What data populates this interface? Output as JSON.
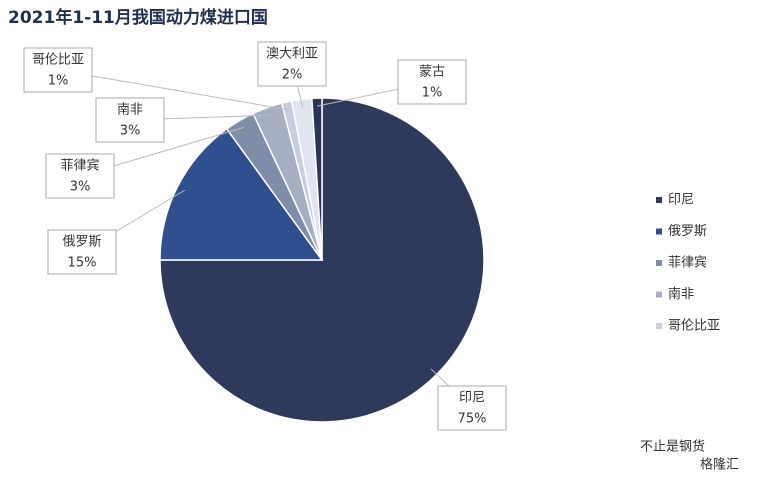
{
  "chart_data": {
    "type": "pie",
    "title": "2021年1-11月我国动力煤进口国",
    "categories": [
      "印尼",
      "俄罗斯",
      "菲律宾",
      "南非",
      "哥伦比亚",
      "澳大利亚",
      "蒙古"
    ],
    "values": [
      75,
      15,
      3,
      3,
      1,
      2,
      1
    ],
    "value_labels": [
      "75%",
      "15%",
      "3%",
      "3%",
      "1%",
      "2%",
      "1%"
    ],
    "colors": [
      "#2e3a5c",
      "#2f4f8f",
      "#7f8ea8",
      "#a5afc4",
      "#c6cde0",
      "#dfe4f0",
      "#2b3657"
    ],
    "legend": "right"
  },
  "footer": {
    "account": "不止是钢货",
    "source": "格隆汇"
  }
}
